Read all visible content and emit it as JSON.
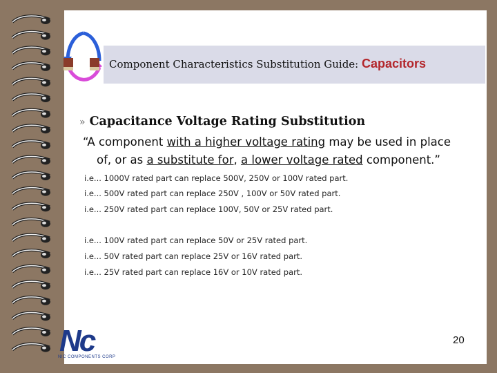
{
  "header": {
    "title": "Component Characteristics Substitution Guide:",
    "highlight": "Capacitors"
  },
  "heading": {
    "bullet": "»",
    "text": "Capacitance Voltage Rating Substitution"
  },
  "quote": {
    "lines": [
      [
        {
          "text": "“A component ",
          "underline": false
        },
        {
          "text": "with a higher voltage rating",
          "underline": true
        },
        {
          "text": " may be used in place",
          "underline": false
        }
      ],
      [
        {
          "text": "of, or as ",
          "underline": false
        },
        {
          "text": "a substitute for",
          "underline": true
        },
        {
          "text": ", ",
          "underline": false
        },
        {
          "text": "a lower voltage rated",
          "underline": true
        },
        {
          "text": " component.”",
          "underline": false
        }
      ]
    ]
  },
  "examples": [
    "i.e... 1000V rated part can replace 500V, 250V or 100V rated part.",
    "i.e... 500V rated part can replace 250V , 100V or 50V rated part.",
    "i.e... 250V rated part can replace 100V, 50V or 25V rated part.",
    "i.e... 100V rated part can replace 50V or 25V rated part.",
    "i.e... 50V rated part can replace 25V or 16V rated part.",
    "i.e... 25V rated part can replace 16V or 10V rated part."
  ],
  "logo": {
    "mark": "Nc",
    "caption": "NIC COMPONENTS CORP"
  },
  "page_number": "20"
}
